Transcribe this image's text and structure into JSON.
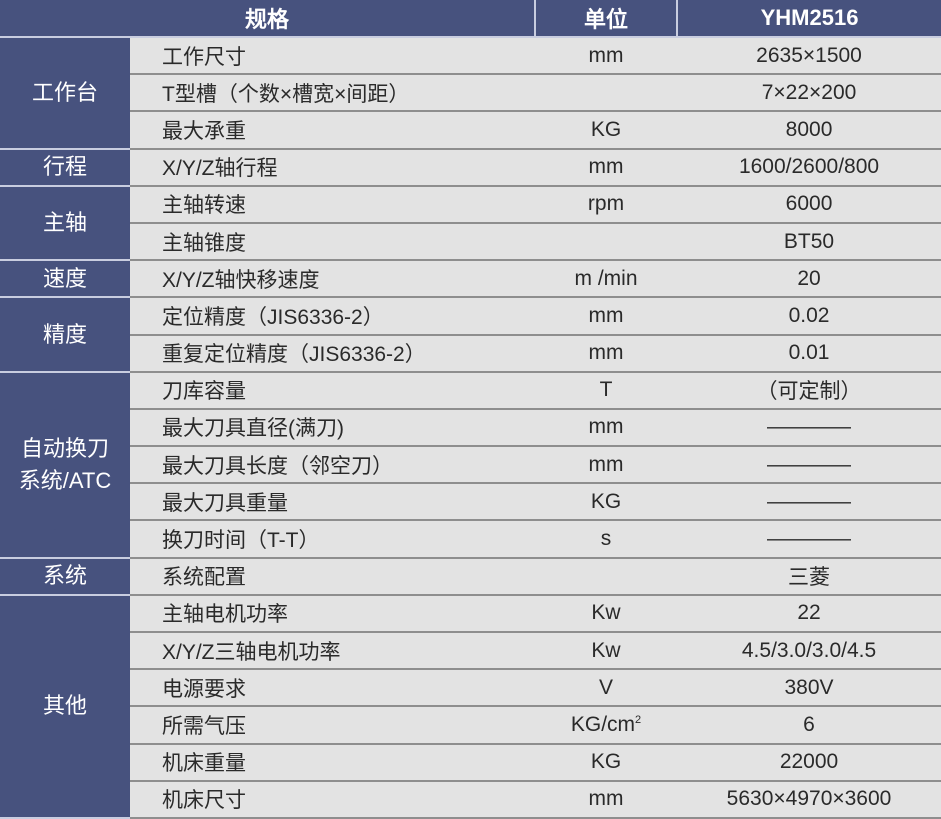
{
  "headers": {
    "spec": "规格",
    "unit": "单位",
    "model": "YHM2516"
  },
  "groups": [
    {
      "category": "工作台",
      "rows": [
        [
          "工作尺寸",
          "mm",
          "2635×1500"
        ],
        [
          "T型槽（个数×槽宽×间距）",
          "",
          "7×22×200"
        ],
        [
          "最大承重",
          "KG",
          "8000"
        ]
      ]
    },
    {
      "category": "行程",
      "rows": [
        [
          "X/Y/Z轴行程",
          "mm",
          "1600/2600/800"
        ]
      ]
    },
    {
      "category": "主轴",
      "rows": [
        [
          "主轴转速",
          "rpm",
          "6000"
        ],
        [
          "主轴锥度",
          "",
          "BT50"
        ]
      ]
    },
    {
      "category": "速度",
      "rows": [
        [
          "X/Y/Z轴快移速度",
          "m /min",
          "20"
        ]
      ]
    },
    {
      "category": "精度",
      "rows": [
        [
          "定位精度（JIS6336-2）",
          "mm",
          "0.02"
        ],
        [
          "重复定位精度（JIS6336-2）",
          "mm",
          "0.01"
        ]
      ]
    },
    {
      "category": "自动换刀\n系统/ATC",
      "rows": [
        [
          "刀库容量",
          "T",
          "（可定制）"
        ],
        [
          "最大刀具直径(满刀)",
          "mm",
          "————"
        ],
        [
          "最大刀具长度（邻空刀）",
          "mm",
          "————"
        ],
        [
          "最大刀具重量",
          "KG",
          "————"
        ],
        [
          "换刀时间（T-T）",
          "s",
          "————"
        ]
      ]
    },
    {
      "category": "系统",
      "rows": [
        [
          "系统配置",
          "",
          "三菱"
        ]
      ]
    },
    {
      "category": "其他",
      "rows": [
        [
          "主轴电机功率",
          "Kw",
          "22"
        ],
        [
          "X/Y/Z三轴电机功率",
          "Kw",
          "4.5/3.0/3.0/4.5"
        ],
        [
          "电源要求",
          "V",
          "380V"
        ],
        [
          "所需气压",
          "KG/cm",
          "6"
        ],
        [
          "机床重量",
          "KG",
          "22000"
        ],
        [
          "机床尺寸",
          "mm",
          "5630×4970×3600"
        ]
      ]
    }
  ],
  "superscript": "2",
  "colors": {
    "header_bg": "#47527e",
    "body_bg": "#e3e3e3"
  }
}
